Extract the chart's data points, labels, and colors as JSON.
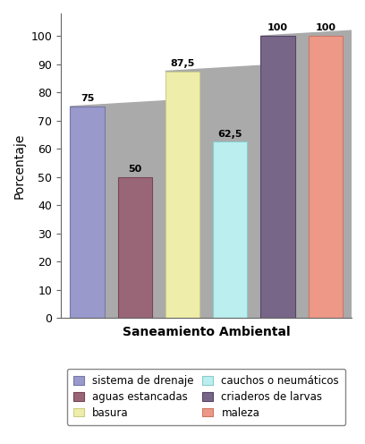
{
  "categories": [
    "sistema de drenaje",
    "aguas estancadas",
    "basura",
    "cauchos o neumáticos",
    "criaderos de larvas",
    "maleza"
  ],
  "values": [
    75,
    50,
    87.5,
    62.5,
    100,
    100
  ],
  "bar_colors": [
    "#9999cc",
    "#996677",
    "#eeeeaa",
    "#bbeeee",
    "#776688",
    "#ee9988"
  ],
  "bar_edge_colors": [
    "#7777aa",
    "#774455",
    "#cccc88",
    "#88cccc",
    "#554466",
    "#cc7766"
  ],
  "bar_labels": [
    "75",
    "50",
    "87,5",
    "62,5",
    "100",
    "100"
  ],
  "xlabel": "Saneamiento Ambiental",
  "ylabel": "Porcentaje",
  "ylim": [
    0,
    108
  ],
  "yticks": [
    0,
    10,
    20,
    30,
    40,
    50,
    60,
    70,
    80,
    90,
    100
  ],
  "legend_labels_col1": [
    "sistema de drenaje",
    "basura",
    "criaderos de larvas"
  ],
  "legend_labels_col2": [
    "aguas estancadas",
    "cauchos o neumáticos",
    "maleza"
  ],
  "legend_colors_col1": [
    "#9999cc",
    "#eeeeaa",
    "#776688"
  ],
  "legend_colors_col2": [
    "#996677",
    "#bbeeee",
    "#ee9988"
  ],
  "legend_edge_col1": [
    "#7777aa",
    "#cccc88",
    "#554466"
  ],
  "legend_edge_col2": [
    "#774455",
    "#88cccc",
    "#cc7766"
  ],
  "background_color": "#ffffff",
  "xlabel_fontsize": 10,
  "ylabel_fontsize": 10,
  "label_fontsize": 8,
  "tick_fontsize": 9,
  "legend_fontsize": 8.5,
  "shadow_color": "#aaaaaa",
  "shadow_depth": 5
}
